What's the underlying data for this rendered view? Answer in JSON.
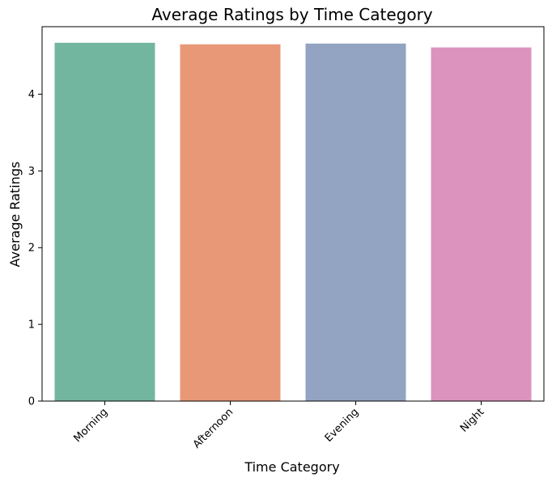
{
  "chart_data": {
    "type": "bar",
    "title": "Average Ratings by Time Category",
    "xlabel": "Time Category",
    "ylabel": "Average Ratings",
    "categories": [
      "Morning",
      "Afternoon",
      "Evening",
      "Night"
    ],
    "values": [
      4.67,
      4.65,
      4.66,
      4.61
    ],
    "colors": [
      "#73b6a0",
      "#e89876",
      "#93a4c2",
      "#dc94bf"
    ],
    "ylim": [
      0,
      4.88
    ],
    "yticks": [
      0,
      1,
      2,
      3,
      4
    ],
    "grid": false,
    "legend": "none",
    "xtick_rotation": 45
  }
}
